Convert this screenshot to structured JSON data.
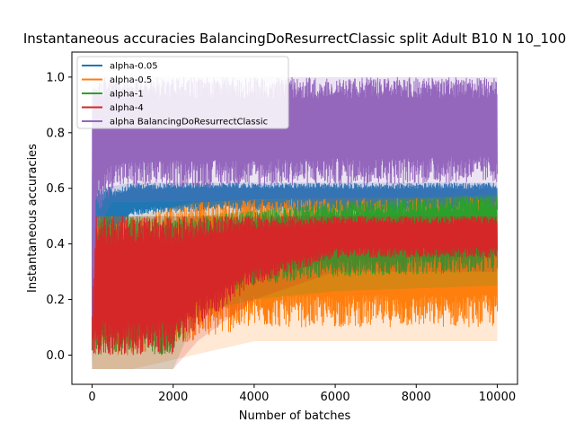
{
  "chart_data": {
    "type": "line",
    "title": "Instantaneous accuracies BalancingDoResurrectClassic split Adult B10 N 10_100",
    "xlabel": "Number of batches",
    "ylabel": "Instantaneous accuracies",
    "xlim": [
      -500,
      10500
    ],
    "ylim": [
      -0.105,
      1.09
    ],
    "x_ticks": [
      0,
      2000,
      4000,
      6000,
      8000,
      10000
    ],
    "x_tick_labels": [
      "0",
      "2000",
      "4000",
      "6000",
      "8000",
      "10000"
    ],
    "y_ticks": [
      0.0,
      0.2,
      0.4,
      0.6,
      0.8,
      1.0
    ],
    "y_tick_labels": [
      "0.0",
      "0.2",
      "0.4",
      "0.6",
      "0.8",
      "1.0"
    ],
    "grid": false,
    "legend_position": "upper-left",
    "x_range": [
      0,
      10000
    ],
    "series": [
      {
        "name": "alpha-0.05",
        "color": "#1f77b4",
        "band": [
          [
            0,
            0.0,
            0.7
          ],
          [
            200,
            0.35,
            0.6
          ],
          [
            1000,
            0.5,
            0.62
          ],
          [
            3000,
            0.52,
            0.62
          ],
          [
            6000,
            0.5,
            0.62
          ],
          [
            10000,
            0.5,
            0.62
          ]
        ]
      },
      {
        "name": "alpha-0.5",
        "color": "#ff7f0e",
        "band": [
          [
            0,
            0.0,
            0.5
          ],
          [
            1000,
            0.0,
            0.5
          ],
          [
            2500,
            0.05,
            0.55
          ],
          [
            4000,
            0.1,
            0.56
          ],
          [
            10000,
            0.1,
            0.57
          ]
        ]
      },
      {
        "name": "alpha-1",
        "color": "#2ca02c",
        "band": [
          [
            0,
            0.0,
            0.5
          ],
          [
            2000,
            0.0,
            0.5
          ],
          [
            2600,
            0.2,
            0.5
          ],
          [
            4000,
            0.25,
            0.52
          ],
          [
            6000,
            0.28,
            0.55
          ],
          [
            10000,
            0.3,
            0.58
          ]
        ]
      },
      {
        "name": "alpha-4",
        "color": "#d62728",
        "band": [
          [
            0,
            0.0,
            0.5
          ],
          [
            2000,
            0.0,
            0.5
          ],
          [
            2600,
            0.1,
            0.5
          ],
          [
            4000,
            0.25,
            0.5
          ],
          [
            6000,
            0.35,
            0.5
          ],
          [
            10000,
            0.35,
            0.5
          ]
        ]
      },
      {
        "name": "alpha BalancingDoResurrectClassic",
        "color": "#9467bd",
        "band": [
          [
            0,
            0.0,
            1.0
          ],
          [
            100,
            0.5,
            1.0
          ],
          [
            500,
            0.6,
            1.0
          ],
          [
            1000,
            0.6,
            1.0
          ],
          [
            10000,
            0.62,
            1.0
          ]
        ]
      }
    ]
  }
}
